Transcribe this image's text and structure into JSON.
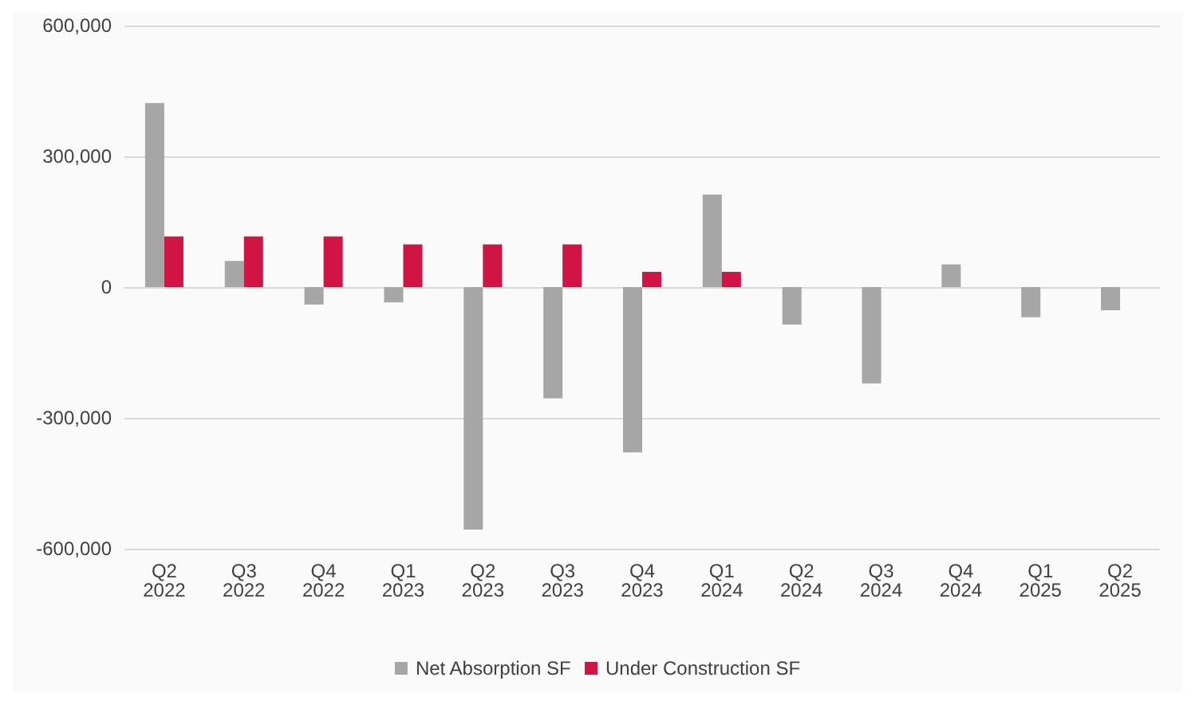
{
  "chart_data": {
    "type": "bar",
    "categories": [
      "Q2\n2022",
      "Q3\n2022",
      "Q4\n2022",
      "Q1\n2023",
      "Q2\n2023",
      "Q3\n2023",
      "Q4\n2023",
      "Q1\n2024",
      "Q2\n2024",
      "Q3\n2024",
      "Q4\n2024",
      "Q1\n2025",
      "Q2\n2025"
    ],
    "series": [
      {
        "name": "Net Absorption SF",
        "color": "#a6a6a6",
        "values": [
          422000,
          60000,
          -40000,
          -35000,
          -556000,
          -255000,
          -379000,
          212000,
          -86000,
          -221000,
          52000,
          -69000,
          -53000
        ]
      },
      {
        "name": "Under Construction SF",
        "color": "#d01443",
        "values": [
          116000,
          116000,
          116000,
          98000,
          98000,
          98000,
          35000,
          35000,
          null,
          null,
          null,
          null,
          null
        ]
      }
    ],
    "ylim": [
      -600000,
      600000
    ],
    "yticks": [
      {
        "value": -600000,
        "label": "-600,000"
      },
      {
        "value": -300000,
        "label": "-300,000"
      },
      0,
      {
        "value": 300000,
        "label": "300,000"
      },
      {
        "value": 600000,
        "label": "600,000"
      }
    ],
    "grid": "y",
    "legend": "bottom"
  }
}
